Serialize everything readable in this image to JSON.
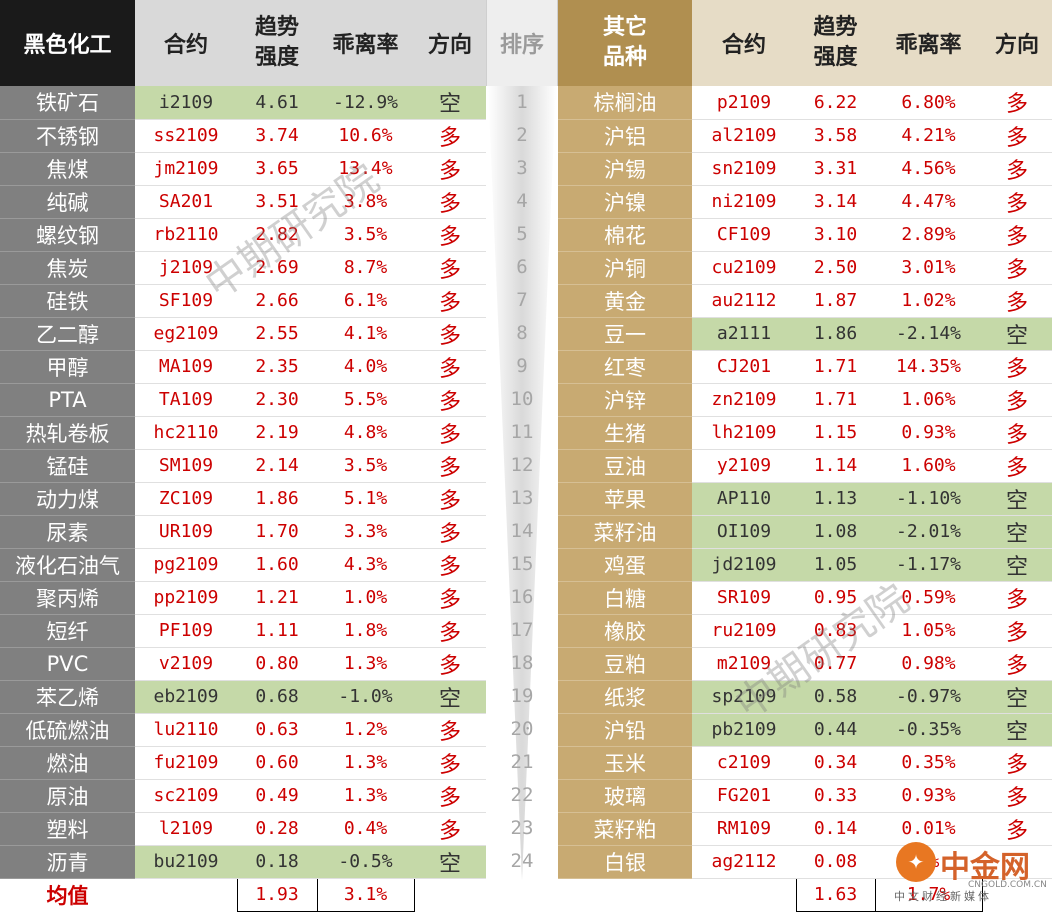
{
  "left": {
    "headers": [
      "黑色化工",
      "合约",
      "趋势\n强度",
      "乖离率",
      "方向"
    ],
    "rows": [
      {
        "name": "铁矿石",
        "code": "i2109",
        "strength": "4.61",
        "deviation": "-12.9%",
        "direction": "空",
        "short": true
      },
      {
        "name": "不锈钢",
        "code": "ss2109",
        "strength": "3.74",
        "deviation": "10.6%",
        "direction": "多",
        "short": false
      },
      {
        "name": "焦煤",
        "code": "jm2109",
        "strength": "3.65",
        "deviation": "13.4%",
        "direction": "多",
        "short": false
      },
      {
        "name": "纯碱",
        "code": "SA201",
        "strength": "3.51",
        "deviation": "3.8%",
        "direction": "多",
        "short": false
      },
      {
        "name": "螺纹钢",
        "code": "rb2110",
        "strength": "2.82",
        "deviation": "3.5%",
        "direction": "多",
        "short": false
      },
      {
        "name": "焦炭",
        "code": "j2109",
        "strength": "2.69",
        "deviation": "8.7%",
        "direction": "多",
        "short": false
      },
      {
        "name": "硅铁",
        "code": "SF109",
        "strength": "2.66",
        "deviation": "6.1%",
        "direction": "多",
        "short": false
      },
      {
        "name": "乙二醇",
        "code": "eg2109",
        "strength": "2.55",
        "deviation": "4.1%",
        "direction": "多",
        "short": false
      },
      {
        "name": "甲醇",
        "code": "MA109",
        "strength": "2.35",
        "deviation": "4.0%",
        "direction": "多",
        "short": false
      },
      {
        "name": "PTA",
        "code": "TA109",
        "strength": "2.30",
        "deviation": "5.5%",
        "direction": "多",
        "short": false
      },
      {
        "name": "热轧卷板",
        "code": "hc2110",
        "strength": "2.19",
        "deviation": "4.8%",
        "direction": "多",
        "short": false
      },
      {
        "name": "锰硅",
        "code": "SM109",
        "strength": "2.14",
        "deviation": "3.5%",
        "direction": "多",
        "short": false
      },
      {
        "name": "动力煤",
        "code": "ZC109",
        "strength": "1.86",
        "deviation": "5.1%",
        "direction": "多",
        "short": false
      },
      {
        "name": "尿素",
        "code": "UR109",
        "strength": "1.70",
        "deviation": "3.3%",
        "direction": "多",
        "short": false
      },
      {
        "name": "液化石油气",
        "code": "pg2109",
        "strength": "1.60",
        "deviation": "4.3%",
        "direction": "多",
        "short": false
      },
      {
        "name": "聚丙烯",
        "code": "pp2109",
        "strength": "1.21",
        "deviation": "1.0%",
        "direction": "多",
        "short": false
      },
      {
        "name": "短纤",
        "code": "PF109",
        "strength": "1.11",
        "deviation": "1.8%",
        "direction": "多",
        "short": false
      },
      {
        "name": "PVC",
        "code": "v2109",
        "strength": "0.80",
        "deviation": "1.3%",
        "direction": "多",
        "short": false
      },
      {
        "name": "苯乙烯",
        "code": "eb2109",
        "strength": "0.68",
        "deviation": "-1.0%",
        "direction": "空",
        "short": true
      },
      {
        "name": "低硫燃油",
        "code": "lu2110",
        "strength": "0.63",
        "deviation": "1.2%",
        "direction": "多",
        "short": false
      },
      {
        "name": "燃油",
        "code": "fu2109",
        "strength": "0.60",
        "deviation": "1.3%",
        "direction": "多",
        "short": false
      },
      {
        "name": "原油",
        "code": "sc2109",
        "strength": "0.49",
        "deviation": "1.3%",
        "direction": "多",
        "short": false
      },
      {
        "name": "塑料",
        "code": "l2109",
        "strength": "0.28",
        "deviation": "0.4%",
        "direction": "多",
        "short": false
      },
      {
        "name": "沥青",
        "code": "bu2109",
        "strength": "0.18",
        "deviation": "-0.5%",
        "direction": "空",
        "short": true
      }
    ],
    "mean_label": "均值",
    "mean_strength": "1.93",
    "mean_deviation": "3.1%"
  },
  "rank": {
    "header": "排序",
    "numbers": [
      "1",
      "2",
      "3",
      "4",
      "5",
      "6",
      "7",
      "8",
      "9",
      "10",
      "11",
      "12",
      "13",
      "14",
      "15",
      "16",
      "17",
      "18",
      "19",
      "20",
      "21",
      "22",
      "23",
      "24"
    ]
  },
  "right": {
    "headers": [
      "其它\n品种",
      "合约",
      "趋势\n强度",
      "乖离率",
      "方向"
    ],
    "rows": [
      {
        "name": "棕榈油",
        "code": "p2109",
        "strength": "6.22",
        "deviation": "6.80%",
        "direction": "多",
        "short": false
      },
      {
        "name": "沪铝",
        "code": "al2109",
        "strength": "3.58",
        "deviation": "4.21%",
        "direction": "多",
        "short": false
      },
      {
        "name": "沪锡",
        "code": "sn2109",
        "strength": "3.31",
        "deviation": "4.56%",
        "direction": "多",
        "short": false
      },
      {
        "name": "沪镍",
        "code": "ni2109",
        "strength": "3.14",
        "deviation": "4.47%",
        "direction": "多",
        "short": false
      },
      {
        "name": "棉花",
        "code": "CF109",
        "strength": "3.10",
        "deviation": "2.89%",
        "direction": "多",
        "short": false
      },
      {
        "name": "沪铜",
        "code": "cu2109",
        "strength": "2.50",
        "deviation": "3.01%",
        "direction": "多",
        "short": false
      },
      {
        "name": "黄金",
        "code": "au2112",
        "strength": "1.87",
        "deviation": "1.02%",
        "direction": "多",
        "short": false
      },
      {
        "name": "豆一",
        "code": "a2111",
        "strength": "1.86",
        "deviation": "-2.14%",
        "direction": "空",
        "short": true
      },
      {
        "name": "红枣",
        "code": "CJ201",
        "strength": "1.71",
        "deviation": "14.35%",
        "direction": "多",
        "short": false
      },
      {
        "name": "沪锌",
        "code": "zn2109",
        "strength": "1.71",
        "deviation": "1.06%",
        "direction": "多",
        "short": false
      },
      {
        "name": "生猪",
        "code": "lh2109",
        "strength": "1.15",
        "deviation": "0.93%",
        "direction": "多",
        "short": false
      },
      {
        "name": "豆油",
        "code": "y2109",
        "strength": "1.14",
        "deviation": "1.60%",
        "direction": "多",
        "short": false
      },
      {
        "name": "苹果",
        "code": "AP110",
        "strength": "1.13",
        "deviation": "-1.10%",
        "direction": "空",
        "short": true
      },
      {
        "name": "菜籽油",
        "code": "OI109",
        "strength": "1.08",
        "deviation": "-2.01%",
        "direction": "空",
        "short": true
      },
      {
        "name": "鸡蛋",
        "code": "jd2109",
        "strength": "1.05",
        "deviation": "-1.17%",
        "direction": "空",
        "short": true
      },
      {
        "name": "白糖",
        "code": "SR109",
        "strength": "0.95",
        "deviation": "0.59%",
        "direction": "多",
        "short": false
      },
      {
        "name": "橡胶",
        "code": "ru2109",
        "strength": "0.83",
        "deviation": "1.05%",
        "direction": "多",
        "short": false
      },
      {
        "name": "豆粕",
        "code": "m2109",
        "strength": "0.77",
        "deviation": "0.98%",
        "direction": "多",
        "short": false
      },
      {
        "name": "纸浆",
        "code": "sp2109",
        "strength": "0.58",
        "deviation": "-0.97%",
        "direction": "空",
        "short": true
      },
      {
        "name": "沪铅",
        "code": "pb2109",
        "strength": "0.44",
        "deviation": "-0.35%",
        "direction": "空",
        "short": true
      },
      {
        "name": "玉米",
        "code": "c2109",
        "strength": "0.34",
        "deviation": "0.35%",
        "direction": "多",
        "short": false
      },
      {
        "name": "玻璃",
        "code": "FG201",
        "strength": "0.33",
        "deviation": "0.93%",
        "direction": "多",
        "short": false
      },
      {
        "name": "菜籽粕",
        "code": "RM109",
        "strength": "0.14",
        "deviation": "0.01%",
        "direction": "多",
        "short": false
      },
      {
        "name": "白银",
        "code": "ag2112",
        "strength": "0.08",
        "deviation": "0%",
        "direction": "",
        "short": false
      }
    ],
    "mean_strength": "1.63",
    "mean_deviation": "1.7%"
  },
  "watermark": {
    "text": "中期研究院"
  },
  "logo": {
    "name": "中金网",
    "url": "CNGOLD.COM.CN",
    "slogan": "中文财经新媒体"
  },
  "colors": {
    "up": "#cc0000",
    "short_highlight": "#c5d9a8",
    "left_category": "#808080",
    "right_category": "#c8aa72",
    "rank_number": "#a6a6a6"
  }
}
